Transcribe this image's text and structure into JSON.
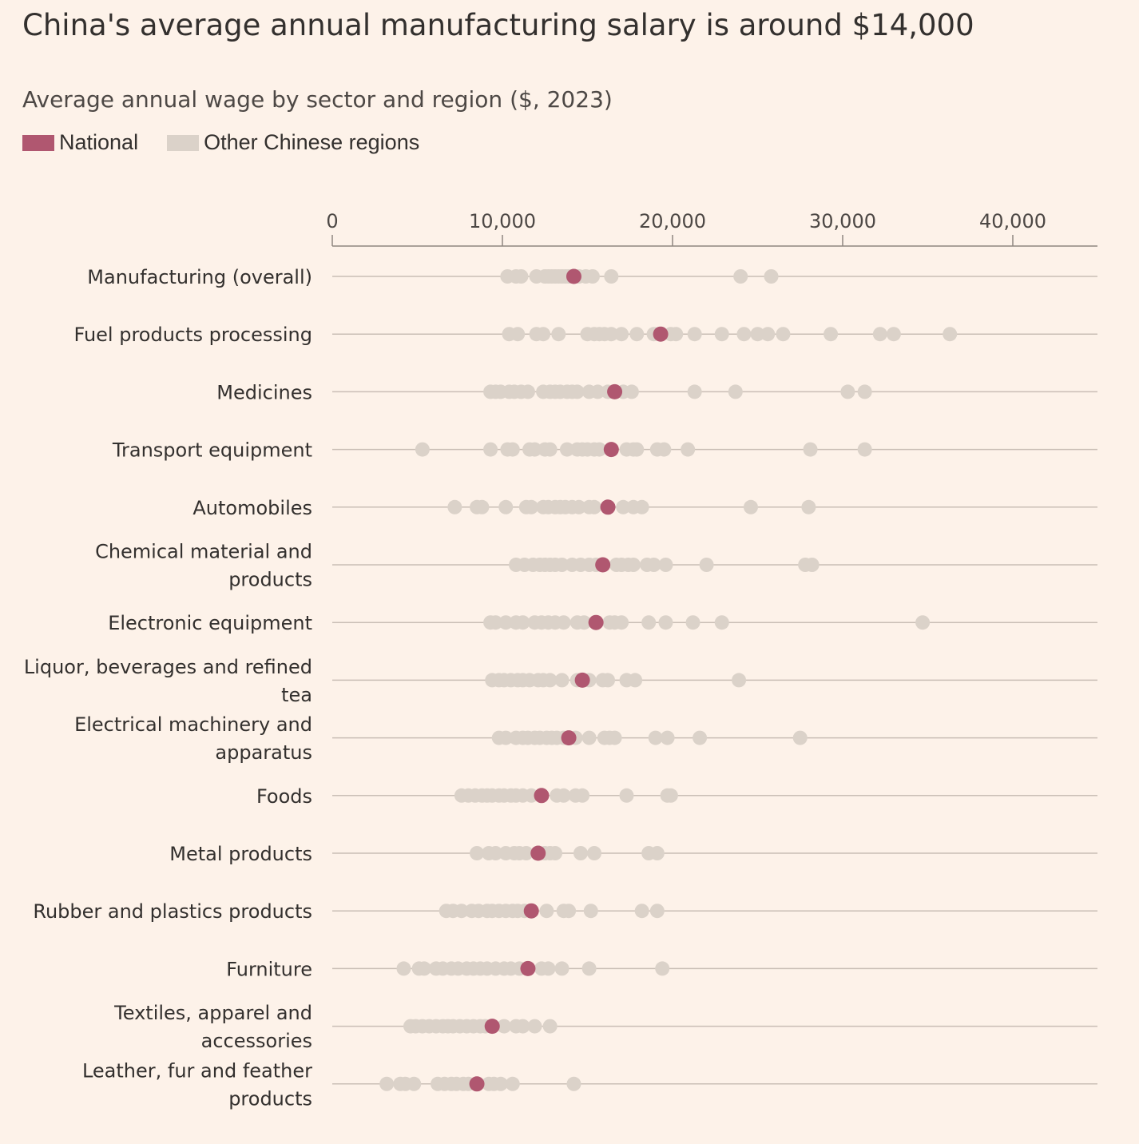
{
  "chart_data": {
    "type": "scatter",
    "title": "China's average annual manufacturing salary is around $14,000",
    "subtitle": "Average annual wage by sector and region ($, 2023)",
    "legend": [
      {
        "name": "National",
        "color": "#b05770"
      },
      {
        "name": "Other Chinese regions",
        "color": "#dbd2c9"
      }
    ],
    "legend_placement": "top-left",
    "xlim": [
      0,
      45000
    ],
    "xticks": [
      0,
      10000,
      20000,
      30000,
      40000
    ],
    "xtick_labels": [
      "0",
      "10,000",
      "20,000",
      "30,000",
      "40,000"
    ],
    "rows": [
      {
        "label": [
          "Manufacturing (overall)"
        ],
        "national": 14200,
        "regions": [
          10300,
          10800,
          11100,
          12000,
          12500,
          12700,
          12900,
          13100,
          13300,
          13500,
          13700,
          13900,
          14500,
          14900,
          15300,
          16400,
          24000,
          25800
        ]
      },
      {
        "label": [
          "Fuel products processing"
        ],
        "national": 19300,
        "regions": [
          10400,
          10900,
          12000,
          12400,
          13300,
          15000,
          15400,
          15700,
          16000,
          16400,
          17000,
          17900,
          18900,
          19900,
          20200,
          21300,
          22900,
          24200,
          25000,
          25600,
          26500,
          29300,
          32200,
          33000,
          36300
        ]
      },
      {
        "label": [
          "Medicines"
        ],
        "national": 16600,
        "regions": [
          9300,
          9600,
          9900,
          10400,
          10700,
          11100,
          11500,
          12400,
          12800,
          13100,
          13400,
          13800,
          14100,
          14400,
          15100,
          15600,
          16200,
          17100,
          17600,
          21300,
          23700,
          30300,
          31300
        ]
      },
      {
        "label": [
          "Transport equipment"
        ],
        "national": 16400,
        "regions": [
          5300,
          9300,
          10300,
          10600,
          11600,
          11900,
          12500,
          12800,
          13800,
          14400,
          14700,
          15000,
          15400,
          15700,
          17300,
          17700,
          17900,
          19100,
          19500,
          20900,
          28100,
          31300
        ]
      },
      {
        "label": [
          "Automobiles"
        ],
        "national": 16200,
        "regions": [
          7200,
          8500,
          8800,
          10200,
          11400,
          11700,
          12400,
          12700,
          13100,
          13400,
          13700,
          14100,
          14500,
          15100,
          15400,
          17100,
          17700,
          18200,
          24600,
          28000
        ]
      },
      {
        "label": [
          "Chemical material and",
          "products"
        ],
        "national": 15900,
        "regions": [
          10800,
          11300,
          11800,
          12200,
          12500,
          12800,
          13100,
          13500,
          14100,
          14600,
          15100,
          15500,
          16700,
          17000,
          17400,
          17700,
          18500,
          18900,
          19600,
          22000,
          27800,
          28200
        ]
      },
      {
        "label": [
          "Electronic equipment"
        ],
        "national": 15500,
        "regions": [
          9300,
          9600,
          10200,
          10800,
          11200,
          11900,
          12300,
          12700,
          13100,
          13600,
          14400,
          14800,
          16300,
          16600,
          17000,
          18600,
          19600,
          21200,
          22900,
          34700
        ]
      },
      {
        "label": [
          "Liquor, beverages and refined",
          "tea"
        ],
        "national": 14700,
        "regions": [
          9400,
          9800,
          10100,
          10500,
          10900,
          11200,
          11600,
          12100,
          12400,
          12800,
          13500,
          14400,
          15100,
          15900,
          16200,
          17300,
          17800,
          23900
        ]
      },
      {
        "label": [
          "Electrical machinery and",
          "apparatus"
        ],
        "national": 13900,
        "regions": [
          9800,
          10200,
          10800,
          11200,
          11500,
          11900,
          12200,
          12600,
          12900,
          13200,
          13600,
          14300,
          15100,
          16000,
          16300,
          16600,
          19000,
          19700,
          21600,
          27500
        ]
      },
      {
        "label": [
          "Foods"
        ],
        "national": 12300,
        "regions": [
          7600,
          8000,
          8400,
          8800,
          9100,
          9400,
          9800,
          10100,
          10500,
          10800,
          11200,
          11700,
          13200,
          13600,
          14300,
          14700,
          17300,
          19700,
          19900
        ]
      },
      {
        "label": [
          "Metal products"
        ],
        "national": 12100,
        "regions": [
          8500,
          9200,
          9600,
          10200,
          10700,
          11000,
          11400,
          12500,
          12800,
          13100,
          14600,
          15400,
          18600,
          19100
        ]
      },
      {
        "label": [
          "Rubber and plastics products"
        ],
        "national": 11700,
        "regions": [
          6700,
          7100,
          7600,
          8200,
          8600,
          9100,
          9400,
          9800,
          10200,
          10600,
          10900,
          11300,
          12600,
          13600,
          13900,
          15200,
          18200,
          19100
        ]
      },
      {
        "label": [
          "Furniture"
        ],
        "national": 11500,
        "regions": [
          4200,
          5100,
          5400,
          6100,
          6500,
          7000,
          7400,
          7900,
          8300,
          8700,
          9100,
          9600,
          10100,
          10500,
          11000,
          12300,
          12700,
          13500,
          15100,
          19400
        ]
      },
      {
        "label": [
          "Textiles, apparel and",
          "accessories"
        ],
        "national": 9400,
        "regions": [
          4600,
          4900,
          5300,
          5700,
          6100,
          6500,
          6800,
          7100,
          7500,
          7900,
          8300,
          8700,
          9000,
          10100,
          10800,
          11200,
          11900,
          12800
        ]
      },
      {
        "label": [
          "Leather, fur and feather",
          "products"
        ],
        "national": 8500,
        "regions": [
          3200,
          4000,
          4300,
          4800,
          6200,
          6600,
          7000,
          7300,
          7700,
          8000,
          9200,
          9500,
          9900,
          10600,
          14200
        ]
      }
    ]
  }
}
